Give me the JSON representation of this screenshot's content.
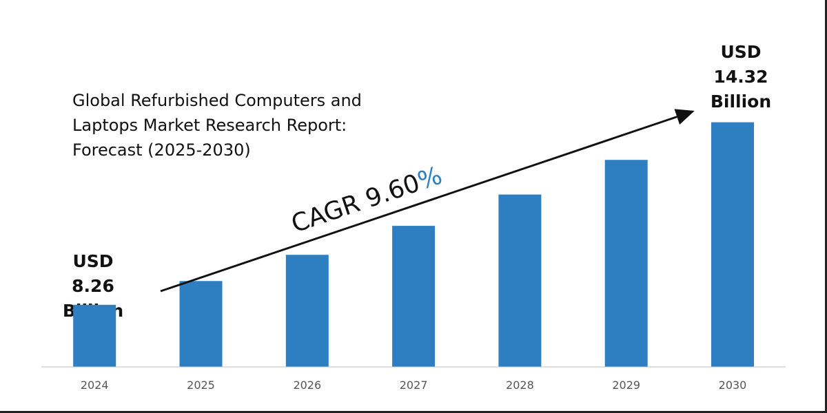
{
  "chart_data": {
    "type": "bar",
    "title": [
      "Global Refurbished Computers and",
      "Laptops Market Research Report:",
      "Forecast (2025-2030)"
    ],
    "categories": [
      "2024",
      "2025",
      "2026",
      "2027",
      "2028",
      "2029",
      "2030"
    ],
    "values": [
      8.26,
      9.05,
      9.92,
      10.88,
      11.92,
      13.07,
      14.32
    ],
    "ylim": [
      6.2,
      14.95
    ],
    "bar_color": "#2e7fc2",
    "axis_color": "#bfbfbf",
    "cagr": {
      "prefix": "CAGR 9.60",
      "suffix": "%",
      "suffix_color": "#2e7fc2"
    },
    "callout_start": [
      "USD",
      "8.26",
      "Billion"
    ],
    "callout_end": [
      "USD",
      "14.32",
      "Billion"
    ]
  }
}
